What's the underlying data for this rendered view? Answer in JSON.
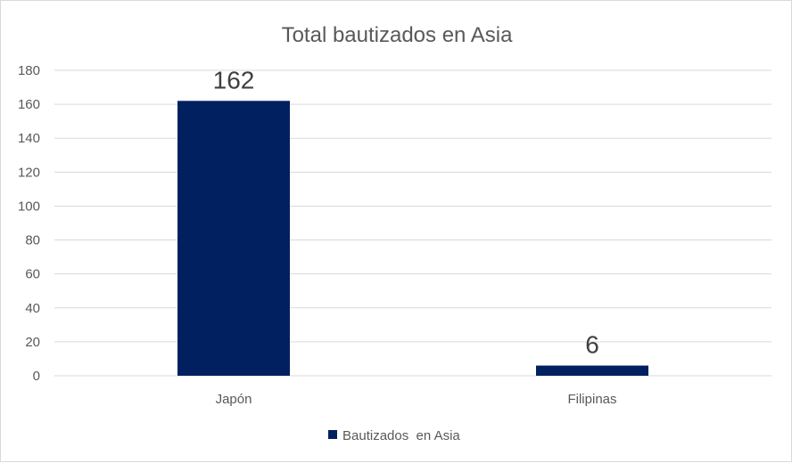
{
  "chart_data": {
    "type": "bar",
    "title": "Total bautizados en Asia",
    "categories": [
      "Japón",
      "Filipinas"
    ],
    "series": [
      {
        "name": "Bautizados  en Asia",
        "values": [
          162,
          6
        ],
        "color": "#002060"
      }
    ],
    "data_labels": [
      "162",
      "6"
    ],
    "ylim": [
      0,
      180
    ],
    "yticks": [
      0,
      20,
      40,
      60,
      80,
      100,
      120,
      140,
      160,
      180
    ],
    "ytick_labels": [
      "0",
      "20",
      "40",
      "60",
      "80",
      "100",
      "120",
      "140",
      "160",
      "180"
    ],
    "grid": true,
    "gridline_color": "#d9d9d9",
    "legend_position": "bottom"
  }
}
